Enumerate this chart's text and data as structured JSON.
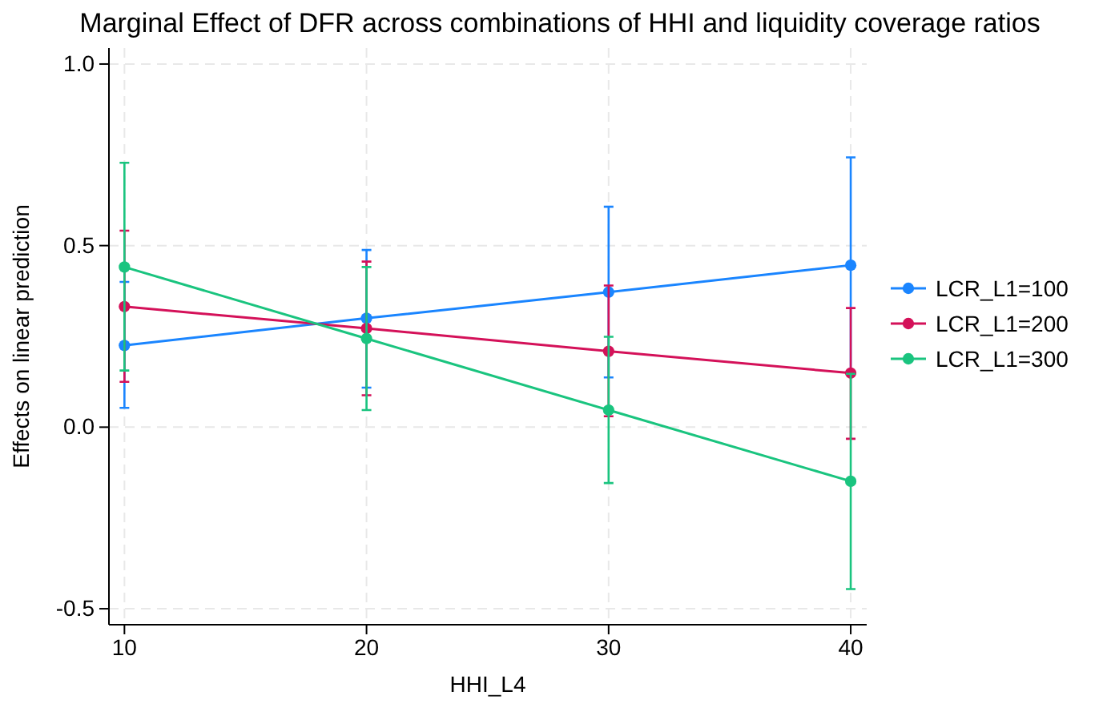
{
  "chart_data": {
    "type": "line",
    "title": "Marginal Effect of DFR across combinations of HHI and liquidity coverage ratios",
    "xlabel": "HHI_L4",
    "ylabel": "Effects on linear prediction",
    "x": [
      10,
      20,
      30,
      40
    ],
    "xlim": [
      9.36,
      40.66
    ],
    "xticks": [
      10,
      20,
      30,
      40
    ],
    "ylim": [
      -0.544,
      1.044
    ],
    "yticks": [
      {
        "value": -0.5,
        "label": "-0.5"
      },
      {
        "value": 0,
        "label": "0.0"
      },
      {
        "value": 0.5,
        "label": "0.5"
      },
      {
        "value": 1,
        "label": "1.0"
      }
    ],
    "grid": true,
    "legend": "right",
    "marker": "circle",
    "line_style": "solid",
    "series": [
      {
        "name": "LCR_L1=100",
        "color": "#1a85ff",
        "values": [
          0.225,
          0.3,
          0.372,
          0.446
        ],
        "errors": [
          [
            0.053,
            0.4
          ],
          [
            0.109,
            0.488
          ],
          [
            0.137,
            0.607
          ],
          [
            0.147,
            0.743
          ]
        ]
      },
      {
        "name": "LCR_L1=200",
        "color": "#d41159",
        "values": [
          0.332,
          0.272,
          0.209,
          0.149
        ],
        "errors": [
          [
            0.125,
            0.541
          ],
          [
            0.088,
            0.456
          ],
          [
            0.03,
            0.39
          ],
          [
            -0.032,
            0.328
          ]
        ]
      },
      {
        "name": "LCR_L1=300",
        "color": "#1ac47f",
        "values": [
          0.441,
          0.244,
          0.047,
          -0.149
        ],
        "errors": [
          [
            0.156,
            0.728
          ],
          [
            0.047,
            0.441
          ],
          [
            -0.154,
            0.249
          ],
          [
            -0.446,
            0.147
          ]
        ]
      }
    ]
  }
}
